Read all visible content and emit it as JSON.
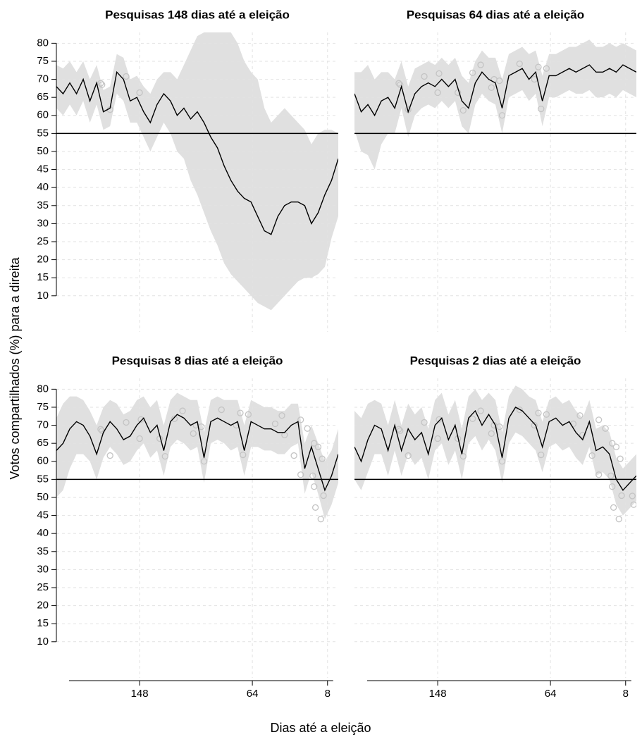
{
  "xlabel": "Dias até a eleição",
  "ylabel": "Votos compartilhados (%) para a direita",
  "chart_data": [
    {
      "type": "line",
      "title": "Pesquisas 148 dias até a eleição",
      "x": [
        210,
        205,
        200,
        195,
        190,
        185,
        180,
        175,
        170,
        165,
        160,
        155,
        150,
        145,
        140,
        135,
        130,
        125,
        120,
        115,
        110,
        105,
        100,
        95,
        90,
        85,
        80,
        75,
        70,
        65,
        60,
        55,
        50,
        45,
        40,
        35,
        30,
        25,
        20,
        15,
        10,
        5,
        0
      ],
      "values": [
        68,
        66,
        69,
        66,
        70,
        64,
        69,
        61,
        62,
        72,
        70,
        64,
        65,
        61,
        58,
        63,
        66,
        64,
        60,
        62,
        59,
        61,
        58,
        54,
        51,
        46,
        42,
        39,
        37,
        36,
        32,
        28,
        27,
        32,
        35,
        36,
        36,
        35,
        30,
        33,
        38,
        42,
        48
      ],
      "band_upper": [
        74,
        73,
        75,
        72,
        75,
        70,
        74,
        67,
        68,
        77,
        76,
        70,
        71,
        68,
        66,
        70,
        72,
        72,
        70,
        74,
        78,
        82,
        83,
        83,
        83,
        83,
        83,
        80,
        75,
        72,
        70,
        62,
        58,
        60,
        62,
        60,
        58,
        56,
        52,
        55,
        56,
        56,
        55
      ],
      "band_lower": [
        62,
        60,
        63,
        60,
        64,
        58,
        63,
        56,
        57,
        66,
        64,
        58,
        58,
        54,
        50,
        54,
        58,
        55,
        50,
        48,
        42,
        38,
        33,
        28,
        24,
        19,
        16,
        14,
        12,
        10,
        8,
        7,
        6,
        8,
        10,
        12,
        14,
        15,
        15,
        16,
        18,
        26,
        32
      ],
      "polls_x": [
        177,
        176,
        170,
        158,
        148
      ],
      "polls_y": [
        68.9,
        68.5,
        61.6,
        70.8,
        66.3
      ],
      "color": "#000000",
      "band_color": "#e0e0e0",
      "poll_color": "#c4c4c4",
      "threshold": 55,
      "xlim": [
        210,
        0
      ],
      "ylim": [
        0,
        83
      ],
      "yticks": [
        10,
        15,
        20,
        25,
        30,
        35,
        40,
        45,
        50,
        55,
        60,
        65,
        70,
        75,
        80
      ],
      "grid": true
    },
    {
      "type": "line",
      "title": "Pesquisas 64 dias até a eleição",
      "x": [
        210,
        205,
        200,
        195,
        190,
        185,
        180,
        175,
        170,
        165,
        160,
        155,
        150,
        145,
        140,
        135,
        130,
        125,
        120,
        115,
        110,
        105,
        100,
        95,
        90,
        85,
        80,
        75,
        70,
        65,
        60,
        55,
        50,
        45,
        40,
        35,
        30,
        25,
        20,
        15,
        10,
        5,
        0
      ],
      "values": [
        66,
        61,
        63,
        60,
        64,
        65,
        62,
        68,
        61,
        66,
        68,
        69,
        68,
        70,
        68,
        70,
        64,
        62,
        69,
        72,
        70,
        69,
        62,
        71,
        72,
        73,
        70,
        72,
        64,
        71,
        71,
        72,
        73,
        72,
        73,
        74,
        72,
        72,
        73,
        72,
        74,
        73,
        72
      ],
      "band_upper": [
        72,
        72,
        74,
        70,
        72,
        72,
        70,
        75,
        68,
        73,
        74,
        75,
        74,
        76,
        74,
        76,
        71,
        69,
        75,
        78,
        76,
        76,
        70,
        77,
        78,
        79,
        77,
        78,
        71,
        77,
        77,
        78,
        79,
        79,
        80,
        81,
        79,
        79,
        80,
        79,
        80,
        79,
        78
      ],
      "band_lower": [
        56,
        50,
        49,
        45,
        52,
        55,
        55,
        62,
        54,
        60,
        62,
        63,
        62,
        64,
        62,
        64,
        57,
        55,
        63,
        66,
        64,
        63,
        55,
        65,
        66,
        67,
        64,
        66,
        57,
        65,
        65,
        66,
        67,
        66,
        66,
        67,
        65,
        65,
        66,
        65,
        67,
        66,
        65
      ],
      "polls_x": [
        177,
        176,
        170,
        158,
        148,
        147,
        133,
        129,
        122,
        116,
        108,
        106,
        102,
        100,
        87,
        76,
        73,
        71,
        67
      ],
      "polls_y": [
        68.9,
        68.5,
        61.6,
        70.8,
        66.3,
        71.6,
        66.3,
        61.4,
        71.8,
        74,
        67.7,
        70,
        69.6,
        60,
        74.3,
        70,
        73.4,
        61.8,
        73
      ],
      "color": "#000000",
      "band_color": "#e0e0e0",
      "poll_color": "#c4c4c4",
      "threshold": 55,
      "xlim": [
        210,
        0
      ],
      "ylim": [
        0,
        83
      ],
      "grid": true
    },
    {
      "type": "line",
      "title": "Pesquisas 8 dias até a eleição",
      "x": [
        210,
        205,
        200,
        195,
        190,
        185,
        180,
        175,
        170,
        165,
        160,
        155,
        150,
        145,
        140,
        135,
        130,
        125,
        120,
        115,
        110,
        105,
        100,
        95,
        90,
        85,
        80,
        75,
        70,
        65,
        60,
        55,
        50,
        45,
        40,
        35,
        30,
        25,
        20,
        15,
        10,
        5,
        0
      ],
      "values": [
        63,
        65,
        69,
        71,
        70,
        67,
        62,
        68,
        71,
        69,
        66,
        67,
        70,
        72,
        68,
        70,
        63,
        71,
        73,
        72,
        70,
        71,
        61,
        71,
        72,
        71,
        70,
        71,
        63,
        71,
        70,
        69,
        69,
        68,
        68,
        70,
        71,
        58,
        64,
        58,
        52,
        56,
        62
      ],
      "band_upper": [
        72,
        76,
        78,
        78,
        77,
        74,
        70,
        75,
        77,
        76,
        73,
        74,
        77,
        78,
        75,
        77,
        70,
        77,
        79,
        78,
        77,
        77,
        68,
        77,
        78,
        77,
        77,
        77,
        70,
        77,
        76,
        75,
        75,
        74,
        74,
        76,
        76,
        65,
        70,
        65,
        60,
        63,
        69
      ],
      "band_lower": [
        50,
        52,
        58,
        62,
        62,
        60,
        55,
        61,
        64,
        62,
        59,
        60,
        63,
        65,
        61,
        63,
        56,
        64,
        66,
        65,
        63,
        64,
        54,
        65,
        66,
        65,
        63,
        64,
        56,
        64,
        64,
        63,
        63,
        62,
        62,
        64,
        65,
        51,
        57,
        51,
        44,
        48,
        54
      ],
      "polls_x": [
        177,
        176,
        170,
        158,
        148,
        147,
        133,
        129,
        122,
        116,
        108,
        106,
        102,
        100,
        87,
        76,
        73,
        71,
        67,
        47,
        42,
        40,
        33,
        28,
        28,
        23,
        19,
        18,
        18,
        17,
        15,
        13,
        12,
        11
      ],
      "polls_y": [
        68.9,
        68.5,
        61.6,
        70.8,
        66.3,
        71.6,
        66.3,
        61.4,
        71.8,
        74,
        67.7,
        70,
        69.6,
        60,
        74.3,
        70,
        73.4,
        61.8,
        73,
        70.4,
        72.7,
        67.3,
        61.6,
        71.5,
        56.3,
        69.1,
        56,
        65,
        53,
        47.2,
        64,
        44,
        60.7,
        50.5
      ],
      "color": "#000000",
      "band_color": "#e0e0e0",
      "poll_color": "#c4c4c4",
      "threshold": 55,
      "xlim": [
        210,
        0
      ],
      "ylim": [
        0,
        83
      ],
      "yticks": [
        10,
        15,
        20,
        25,
        30,
        35,
        40,
        45,
        50,
        55,
        60,
        65,
        70,
        75,
        80
      ],
      "xticks": [
        148,
        64,
        8
      ],
      "grid": true
    },
    {
      "type": "line",
      "title": "Pesquisas 2 dias até a eleição",
      "x": [
        210,
        205,
        200,
        195,
        190,
        185,
        180,
        175,
        170,
        165,
        160,
        155,
        150,
        145,
        140,
        135,
        130,
        125,
        120,
        115,
        110,
        105,
        100,
        95,
        90,
        85,
        80,
        75,
        70,
        65,
        60,
        55,
        50,
        45,
        40,
        35,
        30,
        25,
        20,
        15,
        10,
        5,
        0
      ],
      "values": [
        64,
        60,
        66,
        70,
        69,
        63,
        70,
        63,
        69,
        66,
        68,
        62,
        70,
        72,
        66,
        70,
        62,
        72,
        74,
        70,
        73,
        70,
        61,
        72,
        75,
        74,
        72,
        70,
        64,
        71,
        72,
        70,
        71,
        68,
        66,
        71,
        63,
        64,
        62,
        55,
        52,
        54,
        56
      ],
      "band_upper": [
        74,
        72,
        76,
        77,
        76,
        70,
        77,
        70,
        76,
        73,
        75,
        69,
        77,
        79,
        73,
        77,
        69,
        78,
        80,
        77,
        79,
        77,
        68,
        78,
        81,
        80,
        78,
        77,
        71,
        77,
        78,
        76,
        77,
        74,
        72,
        77,
        69,
        70,
        68,
        61,
        58,
        60,
        62
      ],
      "band_lower": [
        55,
        52,
        57,
        62,
        62,
        56,
        63,
        56,
        62,
        59,
        61,
        55,
        63,
        65,
        59,
        63,
        55,
        65,
        67,
        63,
        66,
        63,
        54,
        65,
        68,
        67,
        65,
        63,
        57,
        64,
        65,
        63,
        64,
        61,
        59,
        64,
        56,
        57,
        55,
        48,
        45,
        47,
        49
      ],
      "polls_x": [
        177,
        176,
        170,
        158,
        148,
        147,
        133,
        129,
        122,
        116,
        108,
        106,
        102,
        100,
        87,
        76,
        73,
        71,
        67,
        47,
        42,
        40,
        33,
        28,
        28,
        23,
        19,
        18,
        18,
        17,
        15,
        13,
        12,
        11,
        3,
        2
      ],
      "polls_y": [
        68.9,
        68.5,
        61.6,
        70.8,
        66.3,
        71.6,
        66.3,
        61.4,
        71.8,
        74,
        67.7,
        70,
        69.6,
        60,
        74.3,
        70,
        73.4,
        61.8,
        73,
        70.4,
        72.7,
        67.3,
        61.6,
        71.5,
        56.3,
        69.1,
        56,
        65,
        53,
        47.2,
        64,
        44,
        60.7,
        50.5,
        50.4,
        48
      ],
      "color": "#000000",
      "band_color": "#e0e0e0",
      "poll_color": "#c4c4c4",
      "threshold": 55,
      "xlim": [
        210,
        0
      ],
      "ylim": [
        0,
        83
      ],
      "xticks": [
        148,
        64,
        8
      ],
      "grid": true
    }
  ]
}
